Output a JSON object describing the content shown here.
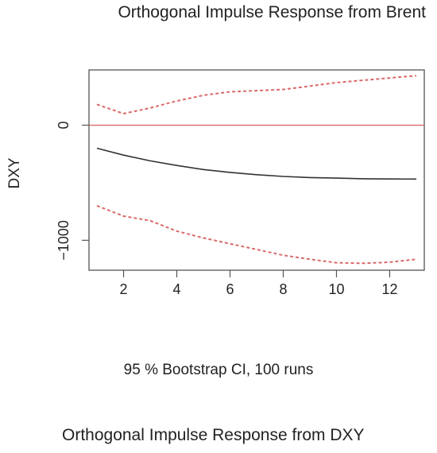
{
  "chart_data": {
    "type": "line",
    "title": "Orthogonal Impulse Response from Brent",
    "ylabel": "DXY",
    "xlabel": "95 % Bootstrap CI,  100 runs",
    "x": [
      1,
      2,
      3,
      4,
      5,
      6,
      7,
      8,
      9,
      10,
      11,
      12,
      13
    ],
    "xlim": [
      0.7,
      13.3
    ],
    "ylim": [
      -1260,
      480
    ],
    "xticks": [
      2,
      4,
      6,
      8,
      10,
      12
    ],
    "yticks": [
      0,
      -1000
    ],
    "ytick_labels": [
      "0",
      "−1000"
    ],
    "zero_line_color": "#d96a6a",
    "series": [
      {
        "role": "response",
        "color": "#333333",
        "style": "solid",
        "values": [
          -200,
          -260,
          -310,
          -350,
          -385,
          -410,
          -430,
          -445,
          -455,
          -460,
          -465,
          -467,
          -468
        ]
      },
      {
        "role": "upper",
        "color": "#d96a6a",
        "style": "dashed",
        "values": [
          180,
          100,
          150,
          210,
          260,
          290,
          300,
          310,
          340,
          370,
          390,
          410,
          430
        ]
      },
      {
        "role": "lower",
        "color": "#d96a6a",
        "style": "dashed",
        "values": [
          -700,
          -790,
          -830,
          -920,
          -980,
          -1030,
          -1080,
          -1130,
          -1165,
          -1195,
          -1200,
          -1190,
          -1165
        ]
      }
    ]
  },
  "bottom_title": "Orthogonal Impulse Response from DXY"
}
